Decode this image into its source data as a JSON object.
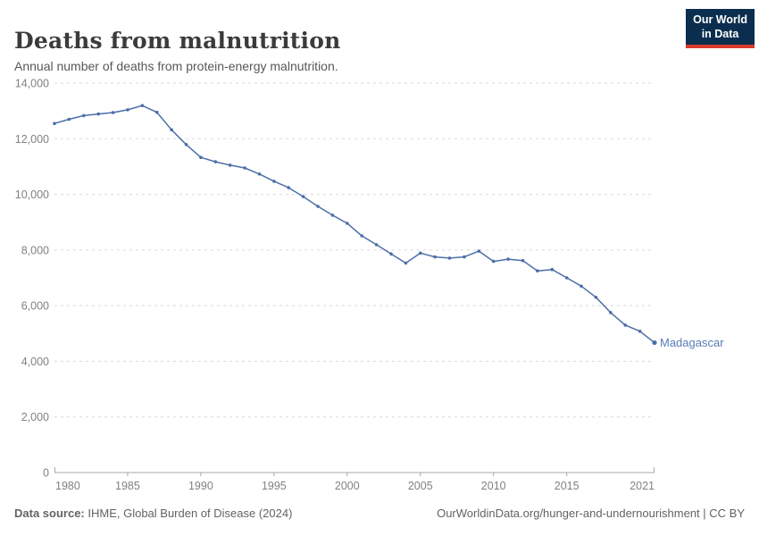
{
  "header": {
    "title": "Deaths from malnutrition",
    "subtitle": "Annual number of deaths from protein-energy malnutrition.",
    "logo": {
      "line1": "Our World",
      "line2": "in Data",
      "bg_color": "#0b2e4e",
      "accent_color": "#d93a2b"
    }
  },
  "chart_data": {
    "type": "line",
    "title": "Deaths from malnutrition",
    "xlabel": "",
    "ylabel": "",
    "entity_label": "Madagascar",
    "x": [
      1980,
      1981,
      1982,
      1983,
      1984,
      1985,
      1986,
      1987,
      1988,
      1989,
      1990,
      1991,
      1992,
      1993,
      1994,
      1995,
      1996,
      1997,
      1998,
      1999,
      2000,
      2001,
      2002,
      2003,
      2004,
      2005,
      2006,
      2007,
      2008,
      2009,
      2010,
      2011,
      2012,
      2013,
      2014,
      2015,
      2016,
      2017,
      2018,
      2019,
      2020,
      2021
    ],
    "values": [
      12550,
      12700,
      12830,
      12890,
      12940,
      13040,
      13190,
      12950,
      12320,
      11790,
      11330,
      11170,
      11050,
      10950,
      10730,
      10470,
      10240,
      9920,
      9570,
      9250,
      8960,
      8510,
      8190,
      7860,
      7530,
      7890,
      7750,
      7710,
      7750,
      7960,
      7590,
      7670,
      7620,
      7250,
      7300,
      7000,
      6700,
      6300,
      5750,
      5300,
      5080,
      4670
    ],
    "xlim": [
      1980,
      2021
    ],
    "ylim": [
      0,
      14000
    ],
    "xticks": [
      1980,
      1985,
      1990,
      1995,
      2000,
      2005,
      2010,
      2015,
      2021
    ],
    "yticks": [
      0,
      2000,
      4000,
      6000,
      8000,
      10000,
      12000,
      14000
    ],
    "ytick_labels": [
      "0",
      "2,000",
      "4,000",
      "6,000",
      "8,000",
      "10,000",
      "12,000",
      "14,000"
    ],
    "grid": "horizontal-dashed",
    "legend_position": "end-of-line",
    "line_color": "#4c6fa7",
    "label_color": "#577cb5",
    "axis_text_color": "#818181",
    "grid_color": "#d9d9d9",
    "axis_line_color": "#a8a8a8"
  },
  "footer": {
    "datasource_label": "Data source:",
    "datasource_value": " IHME, Global Burden of Disease (2024)",
    "license_text": "OurWorldinData.org/hunger-and-undernourishment | CC BY"
  }
}
